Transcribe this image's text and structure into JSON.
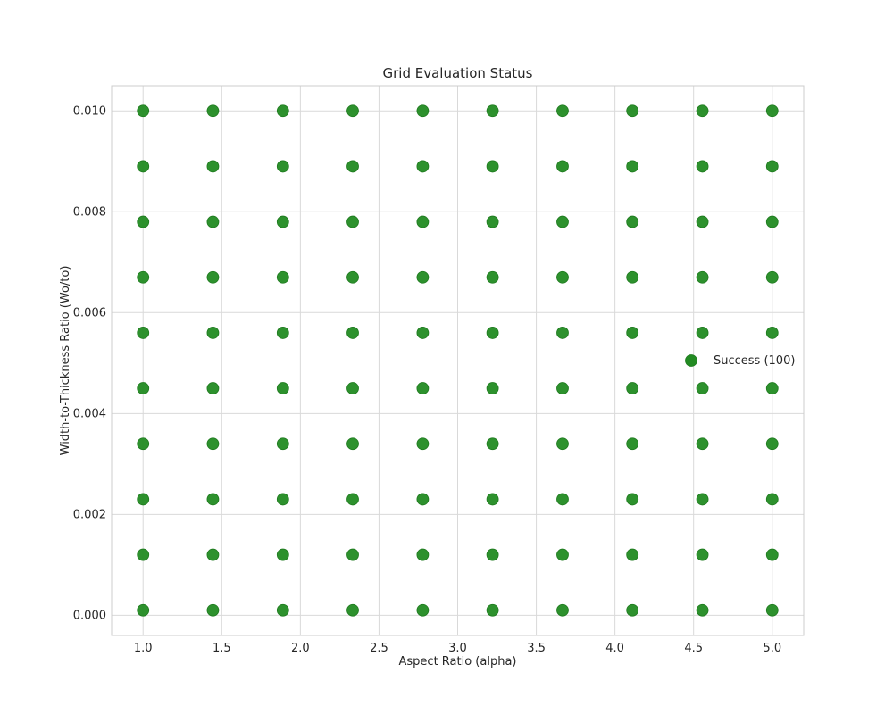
{
  "chart_data": {
    "type": "scatter",
    "title": "Grid Evaluation Status",
    "xlabel": "Aspect Ratio (alpha)",
    "ylabel": "Width-to-Thickness Ratio (Wo/to)",
    "xlim": [
      0.8,
      5.2
    ],
    "ylim": [
      -0.0004,
      0.0105
    ],
    "x_ticks": [
      1.0,
      1.5,
      2.0,
      2.5,
      3.0,
      3.5,
      4.0,
      4.5,
      5.0
    ],
    "x_tick_labels": [
      "1.0",
      "1.5",
      "2.0",
      "2.5",
      "3.0",
      "3.5",
      "4.0",
      "4.5",
      "5.0"
    ],
    "y_ticks": [
      0.0,
      0.002,
      0.004,
      0.006,
      0.008,
      0.01
    ],
    "y_tick_labels": [
      "0.000",
      "0.002",
      "0.004",
      "0.006",
      "0.008",
      "0.010"
    ],
    "grid": true,
    "legend_position": "right",
    "series": [
      {
        "name": "Success (100)",
        "color": "#228B22",
        "x_values": [
          1.0,
          1.444,
          1.889,
          2.333,
          2.778,
          3.222,
          3.667,
          4.111,
          4.556,
          5.0
        ],
        "y_values": [
          0.0001,
          0.0012,
          0.0023,
          0.0034,
          0.0045,
          0.0056,
          0.0067,
          0.0078,
          0.0089,
          0.01
        ]
      }
    ]
  }
}
